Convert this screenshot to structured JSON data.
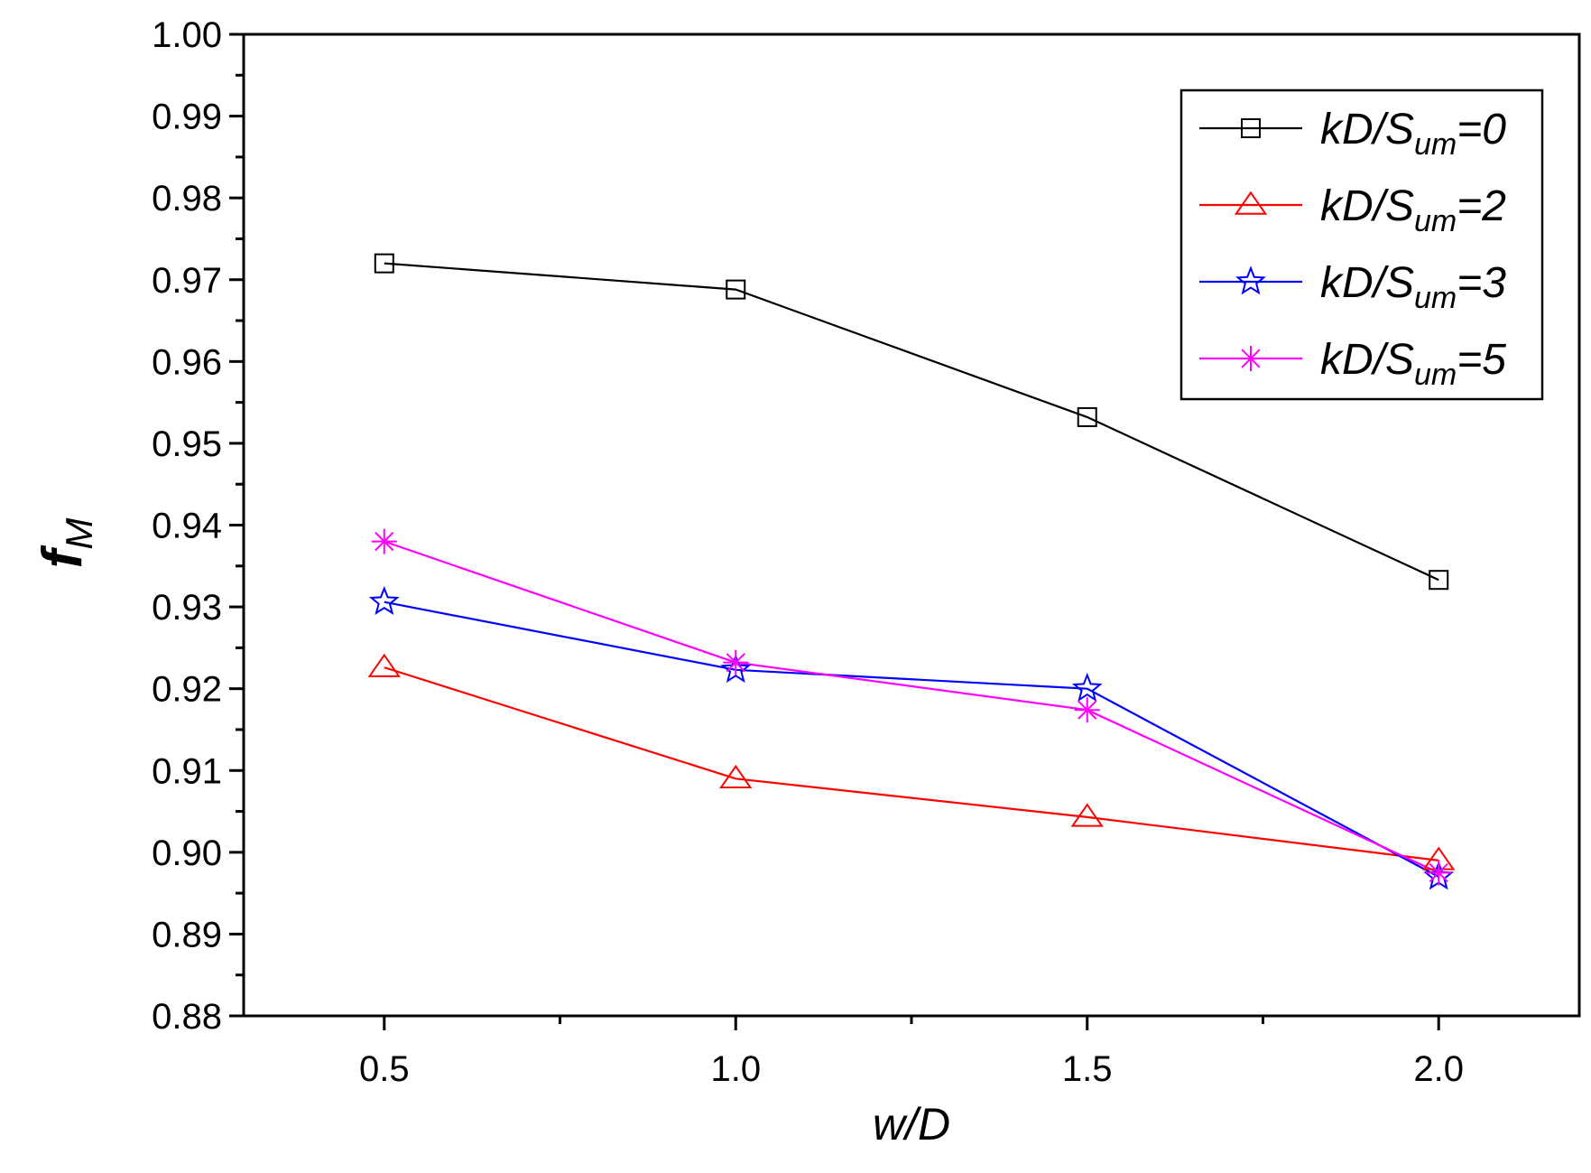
{
  "chart_data": {
    "type": "line",
    "title": "",
    "xlabel": "w/D",
    "ylabel": {
      "main": "f",
      "sub": "M"
    },
    "x": [
      0.5,
      1.0,
      1.5,
      2.0
    ],
    "xticks": [
      "0.5",
      "1.0",
      "1.5",
      "2.0"
    ],
    "xlim": [
      0.3,
      2.2
    ],
    "yticks": [
      "0.88",
      "0.89",
      "0.90",
      "0.91",
      "0.92",
      "0.93",
      "0.94",
      "0.95",
      "0.96",
      "0.97",
      "0.98",
      "0.99",
      "1.00"
    ],
    "ylim": [
      0.88,
      1.0
    ],
    "grid": false,
    "legend_position": "top-right",
    "series": [
      {
        "name": "kD/Sum=0",
        "label_main": "kD/S",
        "label_sub": "um",
        "label_tail": "=0",
        "color": "#000000",
        "marker": "square",
        "values": [
          0.972,
          0.9688,
          0.9532,
          0.9333
        ]
      },
      {
        "name": "kD/Sum=2",
        "label_main": "kD/S",
        "label_sub": "um",
        "label_tail": "=2",
        "color": "#ff0000",
        "marker": "triangle",
        "values": [
          0.9226,
          0.909,
          0.9043,
          0.899
        ]
      },
      {
        "name": "kD/Sum=3",
        "label_main": "kD/S",
        "label_sub": "um",
        "label_tail": "=3",
        "color": "#0000ff",
        "marker": "star",
        "values": [
          0.9306,
          0.9223,
          0.92,
          0.897
        ]
      },
      {
        "name": "kD/Sum=5",
        "label_main": "kD/S",
        "label_sub": "um",
        "label_tail": "=5",
        "color": "#ff00ff",
        "marker": "asterisk",
        "values": [
          0.938,
          0.9232,
          0.9174,
          0.8975
        ]
      }
    ]
  }
}
